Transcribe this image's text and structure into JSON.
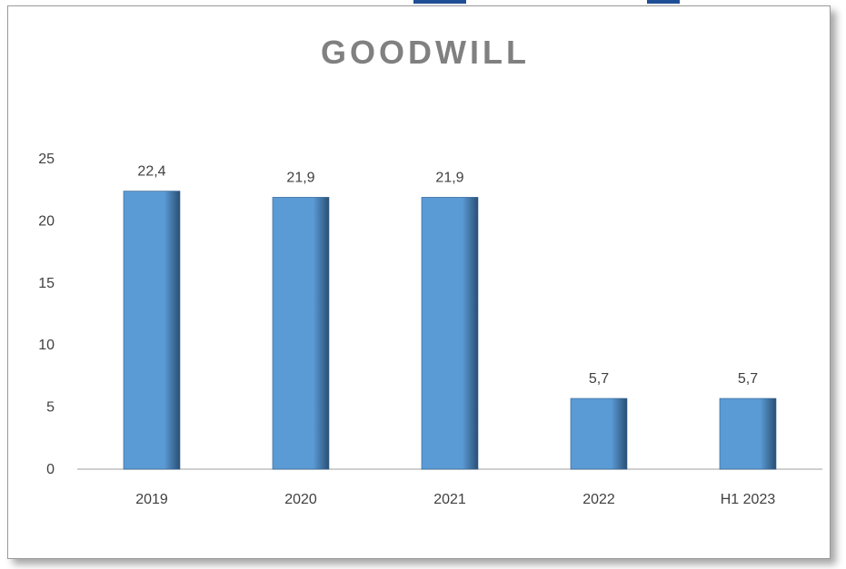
{
  "colors": {
    "bar": "#5b9bd5",
    "bar_edge": "#2f5f8e",
    "title": "#808080",
    "tick_text": "#404040",
    "axis_line": "#bfbfbf",
    "top_artifact": "#1f4e96"
  },
  "chart_data": {
    "type": "bar",
    "title": "GOODWILL",
    "xlabel": "",
    "ylabel": "",
    "categories": [
      "2019",
      "2020",
      "2021",
      "2022",
      "H1 2023"
    ],
    "values": [
      22.4,
      21.9,
      21.9,
      5.7,
      5.7
    ],
    "data_labels": [
      "22,4",
      "21,9",
      "21,9",
      "5,7",
      "5,7"
    ],
    "ylim": [
      0,
      25
    ],
    "yticks": [
      "0",
      "5",
      "10",
      "15",
      "20",
      "25"
    ],
    "grid": false,
    "legend": "none"
  }
}
